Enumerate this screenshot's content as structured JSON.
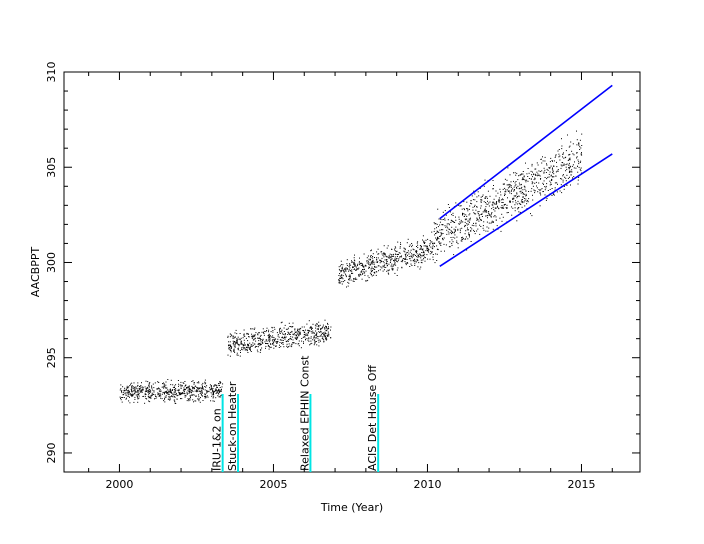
{
  "chart_data": {
    "type": "scatter",
    "title": "",
    "xlabel": "Time (Year)",
    "ylabel": "AACBPPT",
    "xlim": [
      1998.2,
      2016.9
    ],
    "ylim": [
      289,
      310
    ],
    "xticks": [
      2000,
      2005,
      2010,
      2015
    ],
    "yticks": [
      290,
      295,
      300,
      305,
      310
    ],
    "grid": false,
    "colors": {
      "points": "#000000",
      "trend": "#0000ff",
      "events": "#00e5e5"
    },
    "segments": [
      {
        "x": [
          2000.0,
          2003.35
        ],
        "y": [
          293.2,
          293.3
        ],
        "spread": 0.35
      },
      {
        "x": [
          2003.5,
          2006.85
        ],
        "y": [
          295.7,
          296.4
        ],
        "spread": 0.45
      },
      {
        "x": [
          2007.1,
          2010.2
        ],
        "y": [
          299.4,
          300.8
        ],
        "spread": 0.5
      },
      {
        "x": [
          2010.2,
          2015.0
        ],
        "y": [
          301.2,
          305.6
        ],
        "spread": 0.9
      }
    ],
    "series": [
      {
        "type": "line",
        "x": [
          2010.4,
          2016.0
        ],
        "y": [
          302.3,
          309.3
        ]
      },
      {
        "type": "line",
        "x": [
          2010.4,
          2016.0
        ],
        "y": [
          299.8,
          305.7
        ]
      }
    ],
    "events": [
      {
        "x": 2003.35,
        "label": "IRU-1&2 on"
      },
      {
        "x": 2003.85,
        "label": "Stuck-on Heater"
      },
      {
        "x": 2006.2,
        "label": "Relaxed EPHIN Const"
      },
      {
        "x": 2008.4,
        "label": "ACIS Det House Off"
      }
    ]
  }
}
